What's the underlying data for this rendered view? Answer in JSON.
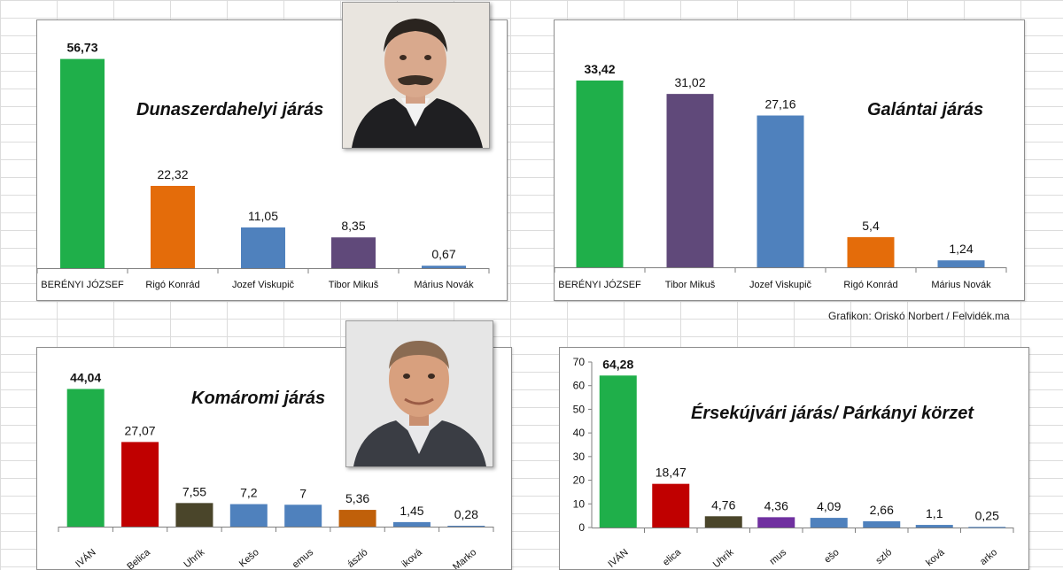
{
  "credit": "Grafikon: Oriskó Norbert / Felvidék.ma",
  "photos": [
    {
      "description": "portrait photo"
    },
    {
      "description": "portrait photo"
    }
  ],
  "chart_data": [
    {
      "type": "bar",
      "title": "Dunaszerdahelyi járás",
      "categories": [
        "BERÉNYI JÓZSEF",
        "Rigó Konrád",
        "Jozef Viskupič",
        "Tibor Mikuš",
        "Márius Novák"
      ],
      "values": [
        56.73,
        22.32,
        11.05,
        8.35,
        0.67
      ],
      "labels": [
        "56,73",
        "22,32",
        "11,05",
        "8,35",
        "0,67"
      ],
      "colors": [
        "#1faf4a",
        "#e46c0a",
        "#4f81bd",
        "#60497a",
        "#4f81bd"
      ],
      "ylim": [
        0,
        60
      ],
      "show_y_axis": false,
      "grid": false
    },
    {
      "type": "bar",
      "title": "Galántai járás",
      "categories": [
        "BERÉNYI JÓZSEF",
        "Tibor Mikuš",
        "Jozef Viskupič",
        "Rigó Konrád",
        "Márius Novák"
      ],
      "values": [
        33.42,
        31.02,
        27.16,
        5.4,
        1.24
      ],
      "labels": [
        "33,42",
        "31,02",
        "27,16",
        "5,4",
        "1,24"
      ],
      "colors": [
        "#1faf4a",
        "#60497a",
        "#4f81bd",
        "#e46c0a",
        "#4f81bd"
      ],
      "ylim": [
        0,
        35
      ],
      "show_y_axis": false,
      "grid": false
    },
    {
      "type": "bar",
      "title": "Komáromi járás",
      "categories": [
        "IVÁN",
        "Belica",
        "Uhrík",
        "Kešo",
        "emus",
        "ászló",
        "iková",
        "Marko"
      ],
      "values": [
        44.04,
        27.07,
        7.55,
        7.2,
        7,
        5.36,
        1.45,
        0.28
      ],
      "labels": [
        "44,04",
        "27,07",
        "7,55",
        "7,2",
        "7",
        "5,36",
        "1,45",
        "0,28"
      ],
      "colors": [
        "#1faf4a",
        "#c00000",
        "#4a452a",
        "#4f81bd",
        "#4f81bd",
        "#c0600a",
        "#4f81bd",
        "#4f81bd"
      ],
      "ylim": [
        0,
        47
      ],
      "show_y_axis": false,
      "grid": false
    },
    {
      "type": "bar",
      "title": "Érsekújvári járás/ Párkányi körzet",
      "categories": [
        "IVÁN",
        "elica",
        "Uhrík",
        "mus",
        "ešo",
        "szló",
        "ková",
        "arko"
      ],
      "values": [
        64.28,
        18.47,
        4.76,
        4.36,
        4.09,
        2.66,
        1.1,
        0.25
      ],
      "labels": [
        "64,28",
        "18,47",
        "4,76",
        "4,36",
        "4,09",
        "2,66",
        "1,1",
        "0,25"
      ],
      "colors": [
        "#1faf4a",
        "#c00000",
        "#4a452a",
        "#7030a0",
        "#4f81bd",
        "#4f81bd",
        "#4f81bd",
        "#4f81bd"
      ],
      "ylim": [
        0,
        70
      ],
      "yticks": [
        0,
        10,
        20,
        30,
        40,
        50,
        60,
        70
      ],
      "show_y_axis": true,
      "grid": false
    }
  ]
}
